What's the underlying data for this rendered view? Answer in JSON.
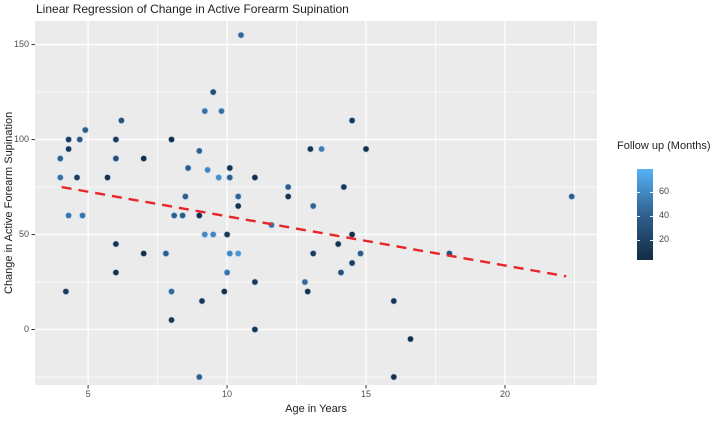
{
  "figure": {
    "background": "#ffffff",
    "panel_background": "#ebebeb",
    "grid_color": "#ffffff",
    "tick_color": "#333333"
  },
  "chart_data": {
    "type": "scatter",
    "title": "Linear Regression of Change in Active Forearm Supination",
    "xlabel": "Age in Years",
    "ylabel": "Change in Active Forearm Supination",
    "xlim": [
      3.09,
      23.31
    ],
    "ylim": [
      -29.2,
      162.4
    ],
    "x_ticks": [
      5,
      10,
      15,
      20
    ],
    "x_minor_ticks": [
      7.5,
      12.5,
      17.5,
      22.5
    ],
    "y_ticks": [
      0,
      50,
      100,
      150
    ],
    "y_minor_ticks": [
      -25,
      25,
      75,
      125
    ],
    "grid": true,
    "legend": {
      "title": "Follow up (Months)",
      "position": "right",
      "ticks": [
        20,
        40,
        60
      ],
      "domain": [
        3,
        79
      ],
      "low_color": "#132B43",
      "mid_color": "#30618F",
      "high_color": "#56B1F7"
    },
    "regression_line": {
      "label": "linear fit",
      "color": "#E8252A",
      "style": "dashed",
      "x": [
        4.05,
        22.2
      ],
      "y": [
        75,
        28
      ]
    },
    "point_columns": [
      "age_years",
      "change_in_supination",
      "followup_months"
    ],
    "series": [
      {
        "name": "patients",
        "points": [
          [
            10.5,
            155,
            45
          ],
          [
            9.5,
            125,
            25
          ],
          [
            9.2,
            115,
            48
          ],
          [
            9.8,
            115,
            48
          ],
          [
            6.2,
            110,
            30
          ],
          [
            14.5,
            110,
            12
          ],
          [
            4.9,
            105,
            38
          ],
          [
            4.3,
            100,
            15
          ],
          [
            4.7,
            100,
            35
          ],
          [
            6.0,
            100,
            14
          ],
          [
            8.0,
            100,
            6
          ],
          [
            4.3,
            95,
            12
          ],
          [
            9.0,
            94,
            40
          ],
          [
            13.0,
            95,
            10
          ],
          [
            13.4,
            95,
            55
          ],
          [
            15.0,
            95,
            6
          ],
          [
            4.0,
            90,
            40
          ],
          [
            6.0,
            90,
            28
          ],
          [
            7.0,
            90,
            6
          ],
          [
            8.6,
            85,
            38
          ],
          [
            9.3,
            84,
            58
          ],
          [
            10.1,
            85,
            8
          ],
          [
            9.7,
            80,
            62
          ],
          [
            4.0,
            80,
            48
          ],
          [
            4.6,
            80,
            14
          ],
          [
            5.7,
            80,
            8
          ],
          [
            10.1,
            80,
            40
          ],
          [
            11.0,
            80,
            6
          ],
          [
            12.2,
            75,
            38
          ],
          [
            14.2,
            75,
            12
          ],
          [
            8.5,
            70,
            40
          ],
          [
            10.4,
            70,
            42
          ],
          [
            12.2,
            70,
            8
          ],
          [
            22.4,
            70,
            40
          ],
          [
            10.4,
            65,
            8
          ],
          [
            13.1,
            65,
            42
          ],
          [
            4.3,
            60,
            50
          ],
          [
            4.8,
            60,
            50
          ],
          [
            8.1,
            60,
            40
          ],
          [
            8.4,
            60,
            38
          ],
          [
            9.0,
            60,
            8
          ],
          [
            11.6,
            55,
            48
          ],
          [
            9.2,
            50,
            60
          ],
          [
            9.5,
            50,
            58
          ],
          [
            10.0,
            50,
            12
          ],
          [
            14.5,
            50,
            6
          ],
          [
            6.0,
            45,
            8
          ],
          [
            14.0,
            45,
            8
          ],
          [
            7.0,
            40,
            6
          ],
          [
            7.8,
            40,
            40
          ],
          [
            10.1,
            40,
            58
          ],
          [
            10.4,
            40,
            66
          ],
          [
            13.1,
            40,
            15
          ],
          [
            14.8,
            40,
            38
          ],
          [
            18.0,
            40,
            30
          ],
          [
            14.5,
            35,
            14
          ],
          [
            6.0,
            30,
            8
          ],
          [
            10.0,
            30,
            50
          ],
          [
            14.1,
            30,
            28
          ],
          [
            11.0,
            25,
            12
          ],
          [
            12.8,
            25,
            45
          ],
          [
            4.2,
            20,
            15
          ],
          [
            8.0,
            20,
            45
          ],
          [
            9.9,
            20,
            8
          ],
          [
            12.9,
            20,
            8
          ],
          [
            9.1,
            15,
            12
          ],
          [
            16.0,
            15,
            10
          ],
          [
            8.0,
            5,
            12
          ],
          [
            11.0,
            0,
            10
          ],
          [
            16.6,
            -5,
            6
          ],
          [
            9.0,
            -25,
            40
          ],
          [
            16.0,
            -25,
            6
          ]
        ]
      }
    ]
  }
}
